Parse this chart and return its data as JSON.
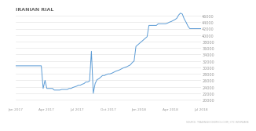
{
  "title": "IRANIAN RIAL",
  "source_text": "SOURCE: TRADINGECONOMICS.COM | CTC INTERBANK",
  "line_color": "#5b9bd5",
  "bg_color": "#ffffff",
  "grid_color": "#e0e0e0",
  "title_color": "#666666",
  "axis_label_color": "#999999",
  "ylim": [
    18000,
    47000
  ],
  "yticks": [
    20000,
    22000,
    24000,
    26000,
    28000,
    30000,
    32000,
    34000,
    36000,
    38000,
    40000,
    42000,
    44000,
    46000
  ],
  "xlabels": [
    "Jan 2017",
    "Apr 2017",
    "Jul 2017",
    "Oct 2017",
    "Jan 2018",
    "Apr 2018",
    "Jul 2018"
  ],
  "data_y": [
    30500,
    30500,
    30500,
    30500,
    30500,
    30500,
    30500,
    30500,
    30500,
    30500,
    30500,
    30500,
    30500,
    30500,
    30500,
    23500,
    26000,
    23500,
    23500,
    23500,
    23500,
    23000,
    23000,
    23000,
    23000,
    23200,
    23200,
    23200,
    23200,
    23500,
    23500,
    23800,
    24000,
    24200,
    24500,
    24500,
    24800,
    25000,
    25500,
    25500,
    25800,
    35000,
    22000,
    25000,
    26200,
    26500,
    27000,
    27500,
    27500,
    27800,
    28000,
    28000,
    28200,
    28500,
    28800,
    29000,
    29200,
    29500,
    29800,
    30000,
    30200,
    30500,
    30800,
    31500,
    32000,
    36500,
    37000,
    37500,
    38000,
    38500,
    39000,
    39500,
    43000,
    43000,
    43000,
    43000,
    43000,
    43500,
    43500,
    43500,
    43500,
    43500,
    43700,
    44000,
    44200,
    44500,
    44800,
    45200,
    46200,
    46800,
    46500,
    45000,
    44000,
    42800,
    42000,
    42000,
    42000,
    42000,
    42000,
    42000,
    42000
  ]
}
